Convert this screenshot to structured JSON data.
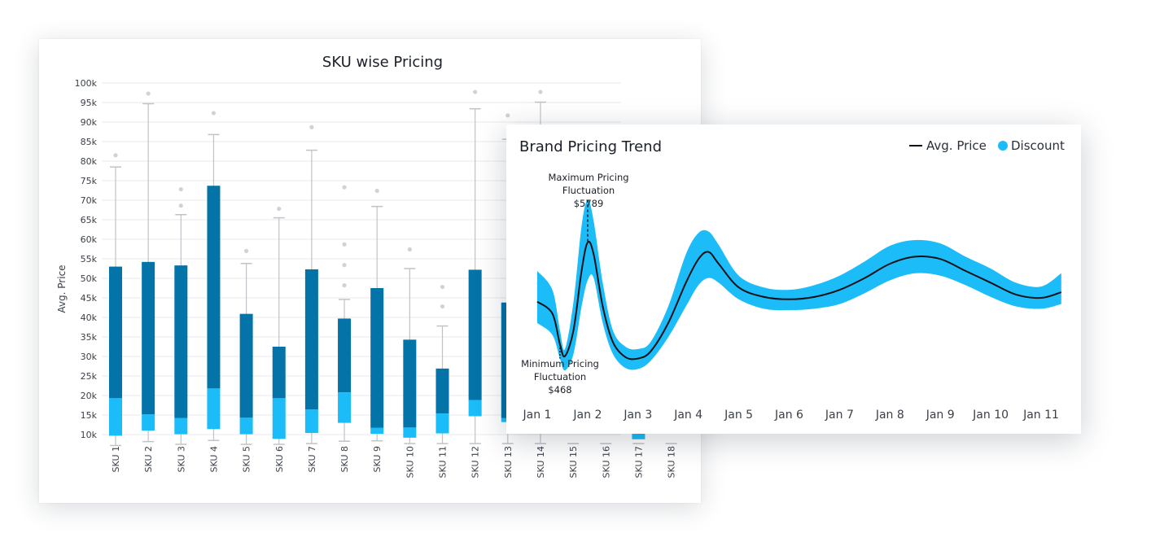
{
  "chart_data": [
    {
      "type": "box",
      "title": "SKU wise Pricing",
      "ylabel": "Avg. Price",
      "xlabel": "",
      "ylim": [
        10000,
        100000
      ],
      "yticks": [
        "10k",
        "15k",
        "20k",
        "25k",
        "30k",
        "35k",
        "40k",
        "45k",
        "50k",
        "55k",
        "60k",
        "65k",
        "70k",
        "75k",
        "80k",
        "85k",
        "90k",
        "95k",
        "100k"
      ],
      "grid": true,
      "categories": [
        "SKU 1",
        "SKU 2",
        "SKU 3",
        "SKU 4",
        "SKU 5",
        "SKU 6",
        "SKU 7",
        "SKU 8",
        "SKU 9",
        "SKU 10",
        "SKU 11",
        "SKU 12",
        "SKU 13",
        "SKU 14",
        "SKU 15",
        "SKU 16",
        "SKU 17",
        "SKU 18"
      ],
      "boxes": [
        {
          "min": 7200,
          "q1": 9700,
          "median": 19300,
          "q3": 53000,
          "max": 78500,
          "outliers": [
            81500
          ]
        },
        {
          "min": 8200,
          "q1": 11000,
          "median": 15200,
          "q3": 54200,
          "max": 94700,
          "outliers": [
            97300
          ]
        },
        {
          "min": 7500,
          "q1": 10100,
          "median": 14200,
          "q3": 53300,
          "max": 66300,
          "outliers": [
            68600,
            72800
          ]
        },
        {
          "min": 8500,
          "q1": 11400,
          "median": 21800,
          "q3": 73700,
          "max": 86800,
          "outliers": [
            92300
          ]
        },
        {
          "min": 7500,
          "q1": 10100,
          "median": 14300,
          "q3": 40900,
          "max": 53800,
          "outliers": [
            57000
          ]
        },
        {
          "min": 7500,
          "q1": 8900,
          "median": 19300,
          "q3": 32500,
          "max": 65500,
          "outliers": [
            67800
          ]
        },
        {
          "min": 7700,
          "q1": 10400,
          "median": 16400,
          "q3": 52300,
          "max": 82800,
          "outliers": [
            88700
          ]
        },
        {
          "min": 8300,
          "q1": 13000,
          "median": 20800,
          "q3": 39700,
          "max": 44600,
          "outliers": [
            48200,
            53400,
            58700,
            73300
          ]
        },
        {
          "min": 8400,
          "q1": 10200,
          "median": 11700,
          "q3": 47500,
          "max": 68400,
          "outliers": [
            72400
          ]
        },
        {
          "min": 7700,
          "q1": 9200,
          "median": 11800,
          "q3": 34300,
          "max": 52500,
          "outliers": [
            57400
          ]
        },
        {
          "min": 7700,
          "q1": 10300,
          "median": 15400,
          "q3": 26900,
          "max": 37800,
          "outliers": [
            42800,
            47800
          ]
        },
        {
          "min": 7700,
          "q1": 14700,
          "median": 18800,
          "q3": 52200,
          "max": 93400,
          "outliers": [
            97700
          ]
        },
        {
          "min": 7700,
          "q1": 13200,
          "median": 14200,
          "q3": 43800,
          "max": 85600,
          "outliers": [
            91700
          ]
        },
        {
          "min": 7700,
          "q1": null,
          "median": null,
          "q3": null,
          "max": 95100,
          "outliers": [
            97700
          ]
        },
        {
          "min": 7700,
          "q1": null,
          "median": null,
          "q3": null,
          "max": null,
          "outliers": []
        },
        {
          "min": 7700,
          "q1": null,
          "median": null,
          "q3": null,
          "max": null,
          "outliers": []
        },
        {
          "min": 7700,
          "q1": 8800,
          "median": 10300,
          "q3": null,
          "max": null,
          "outliers": []
        },
        {
          "min": 7700,
          "q1": null,
          "median": null,
          "q3": null,
          "max": null,
          "outliers": []
        }
      ],
      "colors": {
        "upper": "#0473a8",
        "lower": "#1bbcf8",
        "whisker": "#bfc3c8",
        "outlier": "#cfd3d8",
        "grid": "#e8eaed"
      }
    },
    {
      "type": "line",
      "title": "Brand Pricing Trend",
      "legend": [
        "Avg. Price",
        "Discount"
      ],
      "legend_position": "top-right",
      "x": [
        "Jan 1",
        "Jan 2",
        "Jan 3",
        "Jan 4",
        "Jan 5",
        "Jan 6",
        "Jan 7",
        "Jan 8",
        "Jan 9",
        "Jan 10",
        "Jan 11"
      ],
      "series": [
        {
          "name": "Avg. Price",
          "color": "#0d1117",
          "points": [
            [
              0.0,
              45
            ],
            [
              0.3,
              42.5
            ],
            [
              0.45,
              36
            ],
            [
              0.55,
              33.5
            ],
            [
              0.72,
              39
            ],
            [
              0.88,
              51.5
            ],
            [
              1.0,
              57.5
            ],
            [
              1.12,
              55
            ],
            [
              1.3,
              44
            ],
            [
              1.5,
              36.5
            ],
            [
              1.75,
              33.3
            ],
            [
              2.0,
              33
            ],
            [
              2.25,
              34.5
            ],
            [
              2.6,
              40.5
            ],
            [
              2.95,
              49
            ],
            [
              3.2,
              54
            ],
            [
              3.4,
              55.5
            ],
            [
              3.6,
              53
            ],
            [
              4.0,
              48
            ],
            [
              4.5,
              46
            ],
            [
              5.0,
              45.5
            ],
            [
              5.5,
              46
            ],
            [
              6.0,
              47.5
            ],
            [
              6.5,
              50
            ],
            [
              7.0,
              53
            ],
            [
              7.5,
              54.5
            ],
            [
              8.0,
              54
            ],
            [
              8.5,
              51.5
            ],
            [
              9.0,
              49
            ],
            [
              9.5,
              46.5
            ],
            [
              10.0,
              45.8
            ],
            [
              10.4,
              47
            ]
          ]
        },
        {
          "name": "Discount",
          "color": "#1bbcf8",
          "upper": [
            [
              0.0,
              51.5
            ],
            [
              0.3,
              47.5
            ],
            [
              0.45,
              39
            ],
            [
              0.55,
              35
            ],
            [
              0.72,
              45
            ],
            [
              0.88,
              61
            ],
            [
              1.0,
              66.5
            ],
            [
              1.12,
              62
            ],
            [
              1.3,
              49
            ],
            [
              1.5,
              39
            ],
            [
              1.75,
              35.5
            ],
            [
              2.0,
              35
            ],
            [
              2.25,
              36.5
            ],
            [
              2.6,
              44
            ],
            [
              2.95,
              55
            ],
            [
              3.2,
              59.5
            ],
            [
              3.4,
              59.8
            ],
            [
              3.6,
              57
            ],
            [
              4.0,
              50.5
            ],
            [
              4.5,
              48
            ],
            [
              5.0,
              47.5
            ],
            [
              5.5,
              48.5
            ],
            [
              6.0,
              50.5
            ],
            [
              6.5,
              53.5
            ],
            [
              7.0,
              56.8
            ],
            [
              7.5,
              58
            ],
            [
              8.0,
              57.3
            ],
            [
              8.5,
              54.5
            ],
            [
              9.0,
              52
            ],
            [
              9.5,
              49
            ],
            [
              10.0,
              48.2
            ],
            [
              10.4,
              51
            ]
          ],
          "lower": [
            [
              0.0,
              40.5
            ],
            [
              0.3,
              38
            ],
            [
              0.45,
              33
            ],
            [
              0.55,
              30.5
            ],
            [
              0.72,
              34
            ],
            [
              0.88,
              44
            ],
            [
              1.0,
              49.5
            ],
            [
              1.12,
              50
            ],
            [
              1.3,
              40.5
            ],
            [
              1.5,
              34
            ],
            [
              1.75,
              31
            ],
            [
              2.0,
              30.8
            ],
            [
              2.25,
              32.5
            ],
            [
              2.6,
              37.5
            ],
            [
              2.95,
              44
            ],
            [
              3.2,
              48.5
            ],
            [
              3.4,
              50
            ],
            [
              3.6,
              49
            ],
            [
              4.0,
              45.5
            ],
            [
              4.5,
              43.5
            ],
            [
              5.0,
              43.2
            ],
            [
              5.5,
              43.5
            ],
            [
              6.0,
              44.5
            ],
            [
              6.5,
              46.8
            ],
            [
              7.0,
              49.5
            ],
            [
              7.5,
              51
            ],
            [
              8.0,
              50.5
            ],
            [
              8.5,
              48.5
            ],
            [
              9.0,
              46
            ],
            [
              9.5,
              44
            ],
            [
              10.0,
              43.5
            ],
            [
              10.4,
              44.5
            ]
          ]
        }
      ],
      "annotations": [
        {
          "lines": [
            "Maximum Pricing",
            "Fluctuation",
            "$5789"
          ],
          "x": 1.0
        },
        {
          "lines": [
            "Minimum Pricing",
            "Fluctuation",
            "$468"
          ],
          "x": 0.45
        }
      ]
    }
  ]
}
